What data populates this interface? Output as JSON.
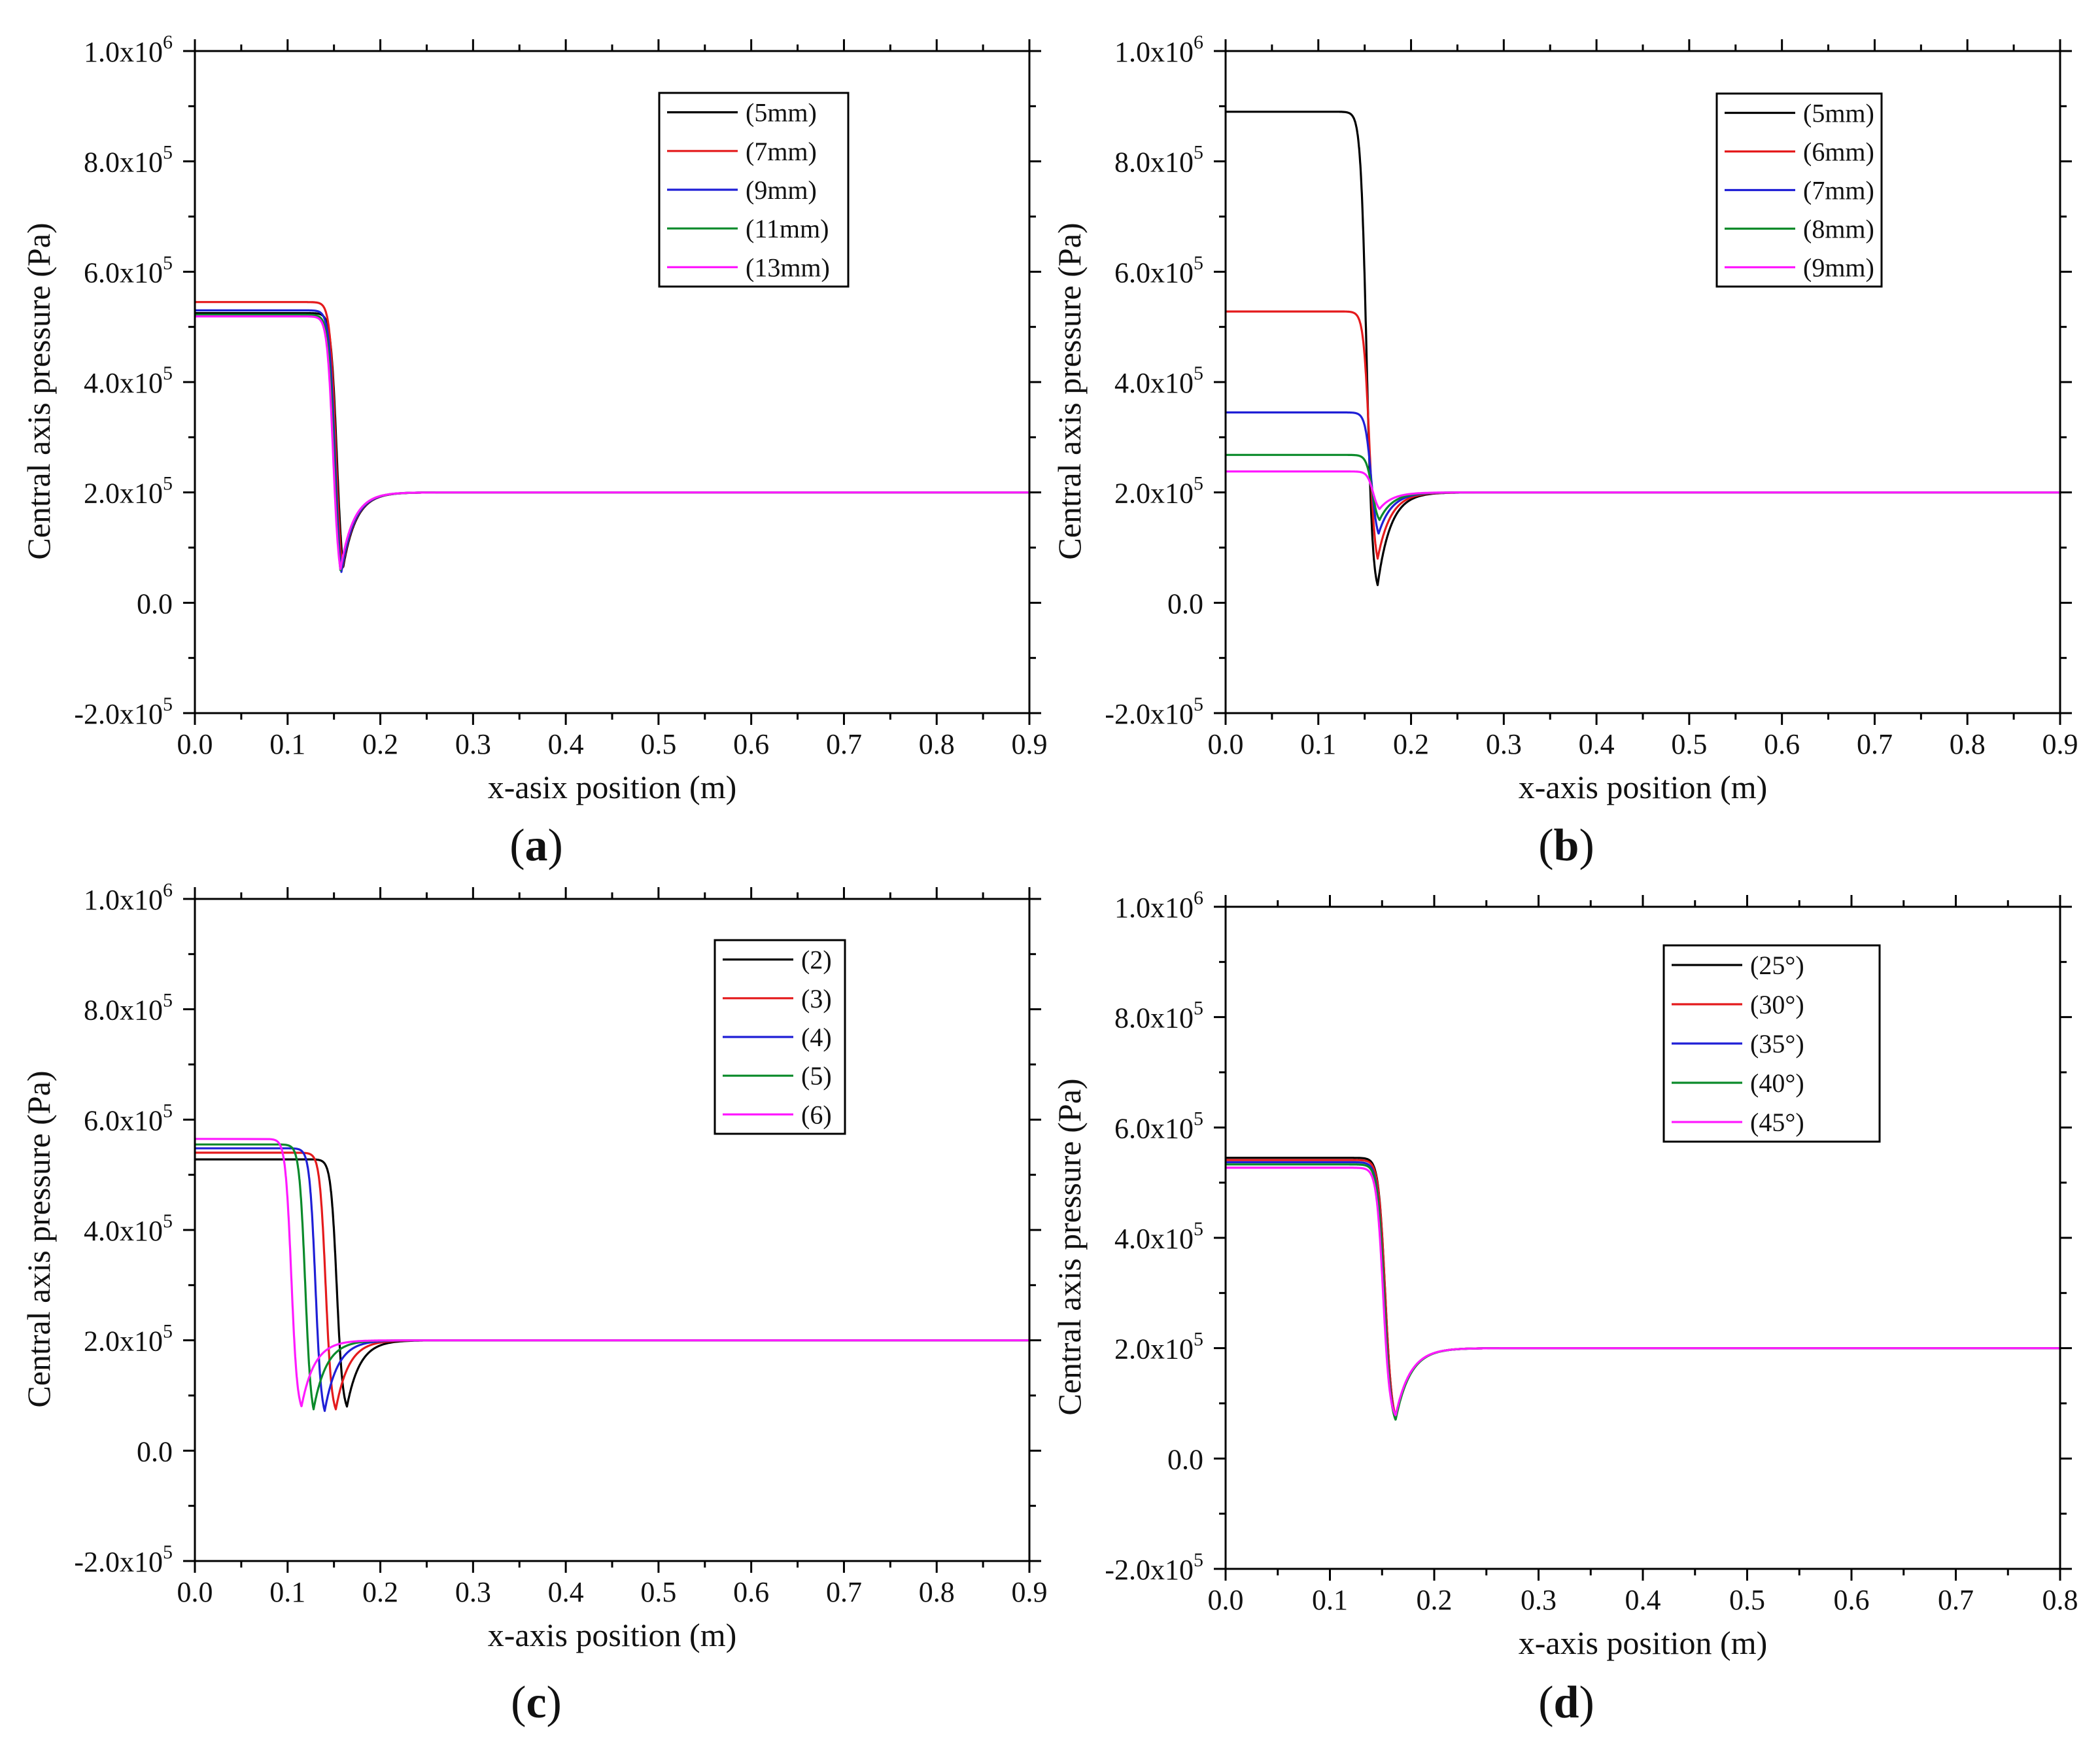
{
  "colors": {
    "black": "#000000",
    "red": "#e41a1c",
    "blue": "#1f1fd6",
    "green": "#0a8a2a",
    "magenta": "#ff1aff"
  },
  "chart_data": [
    {
      "panel": "a",
      "type": "line",
      "panel_label": "a",
      "xlabel": "x-asix position (m)",
      "ylabel": "Central axis pressure (Pa)",
      "xlim": [
        0.0,
        0.9
      ],
      "ylim": [
        -200000,
        1000000
      ],
      "xticks": [
        0.0,
        0.1,
        0.2,
        0.3,
        0.4,
        0.5,
        0.6,
        0.7,
        0.8,
        0.9
      ],
      "xtick_labels": [
        "0.0",
        "0.1",
        "0.2",
        "0.3",
        "0.4",
        "0.5",
        "0.6",
        "0.7",
        "0.8",
        "0.9"
      ],
      "yticks": [
        -200000,
        0,
        200000,
        400000,
        600000,
        800000,
        1000000
      ],
      "ytick_labels": [
        [
          "-2.0x10",
          "5"
        ],
        [
          "0.0",
          ""
        ],
        [
          "2.0x10",
          "5"
        ],
        [
          "4.0x10",
          "5"
        ],
        [
          "6.0x10",
          "5"
        ],
        [
          "8.0x10",
          "5"
        ],
        [
          "1.0x10",
          "6"
        ]
      ],
      "legend_position": "top-right",
      "series": [
        {
          "name": "(5mm)",
          "color": "black",
          "p0": 525000,
          "x_drop": 0.153,
          "p_min": 65000,
          "x_min": 0.16
        },
        {
          "name": "(7mm)",
          "color": "red",
          "p0": 545000,
          "x_drop": 0.152,
          "p_min": 62000,
          "x_min": 0.159
        },
        {
          "name": "(9mm)",
          "color": "blue",
          "p0": 530000,
          "x_drop": 0.151,
          "p_min": 56000,
          "x_min": 0.158
        },
        {
          "name": "(11mm)",
          "color": "green",
          "p0": 522000,
          "x_drop": 0.15,
          "p_min": 58000,
          "x_min": 0.157
        },
        {
          "name": "(13mm)",
          "color": "magenta",
          "p0": 519000,
          "x_drop": 0.149,
          "p_min": 60000,
          "x_min": 0.157
        }
      ],
      "p_end": 200000
    },
    {
      "panel": "b",
      "type": "line",
      "panel_label": "b",
      "xlabel": "x-axis position (m)",
      "ylabel": "Central axis pressure (Pa)",
      "xlim": [
        0.0,
        0.9
      ],
      "ylim": [
        -200000,
        1000000
      ],
      "xticks": [
        0.0,
        0.1,
        0.2,
        0.3,
        0.4,
        0.5,
        0.6,
        0.7,
        0.8,
        0.9
      ],
      "xtick_labels": [
        "0.0",
        "0.1",
        "0.2",
        "0.3",
        "0.4",
        "0.5",
        "0.6",
        "0.7",
        "0.8",
        "0.9"
      ],
      "yticks": [
        -200000,
        0,
        200000,
        400000,
        600000,
        800000,
        1000000
      ],
      "ytick_labels": [
        [
          "-2.0x10",
          "5"
        ],
        [
          "0.0",
          ""
        ],
        [
          "2.0x10",
          "5"
        ],
        [
          "4.0x10",
          "5"
        ],
        [
          "6.0x10",
          "5"
        ],
        [
          "8.0x10",
          "5"
        ],
        [
          "1.0x10",
          "6"
        ]
      ],
      "legend_position": "top-right",
      "series": [
        {
          "name": "(5mm)",
          "color": "black",
          "p0": 890000,
          "x_drop": 0.152,
          "p_min": 32000,
          "x_min": 0.164
        },
        {
          "name": "(6mm)",
          "color": "red",
          "p0": 528000,
          "x_drop": 0.155,
          "p_min": 80000,
          "x_min": 0.164
        },
        {
          "name": "(7mm)",
          "color": "blue",
          "p0": 345000,
          "x_drop": 0.157,
          "p_min": 125000,
          "x_min": 0.165
        },
        {
          "name": "(8mm)",
          "color": "green",
          "p0": 268000,
          "x_drop": 0.158,
          "p_min": 150000,
          "x_min": 0.166
        },
        {
          "name": "(9mm)",
          "color": "magenta",
          "p0": 238000,
          "x_drop": 0.159,
          "p_min": 170000,
          "x_min": 0.166
        }
      ],
      "p_end": 200000
    },
    {
      "panel": "c",
      "type": "line",
      "panel_label": "c",
      "xlabel": "x-axis position (m)",
      "ylabel": "Central axis pressure (Pa)",
      "xlim": [
        0.0,
        0.9
      ],
      "ylim": [
        -200000,
        1000000
      ],
      "xticks": [
        0.0,
        0.1,
        0.2,
        0.3,
        0.4,
        0.5,
        0.6,
        0.7,
        0.8,
        0.9
      ],
      "xtick_labels": [
        "0.0",
        "0.1",
        "0.2",
        "0.3",
        "0.4",
        "0.5",
        "0.6",
        "0.7",
        "0.8",
        "0.9"
      ],
      "yticks": [
        -200000,
        0,
        200000,
        400000,
        600000,
        800000,
        1000000
      ],
      "ytick_labels": [
        [
          "-2.0x10",
          "5"
        ],
        [
          "0.0",
          ""
        ],
        [
          "2.0x10",
          "5"
        ],
        [
          "4.0x10",
          "5"
        ],
        [
          "6.0x10",
          "5"
        ],
        [
          "8.0x10",
          "5"
        ],
        [
          "1.0x10",
          "6"
        ]
      ],
      "legend_position": "top-right",
      "series": [
        {
          "name": "(2)",
          "color": "black",
          "p0": 528000,
          "x_drop": 0.153,
          "p_min": 80000,
          "x_min": 0.164
        },
        {
          "name": "(3)",
          "color": "red",
          "p0": 540000,
          "x_drop": 0.141,
          "p_min": 75000,
          "x_min": 0.152
        },
        {
          "name": "(4)",
          "color": "blue",
          "p0": 548000,
          "x_drop": 0.13,
          "p_min": 72000,
          "x_min": 0.14
        },
        {
          "name": "(5)",
          "color": "green",
          "p0": 555000,
          "x_drop": 0.119,
          "p_min": 75000,
          "x_min": 0.128
        },
        {
          "name": "(6)",
          "color": "magenta",
          "p0": 565000,
          "x_drop": 0.104,
          "p_min": 80000,
          "x_min": 0.115
        }
      ],
      "p_end": 200000
    },
    {
      "panel": "d",
      "type": "line",
      "panel_label": "d",
      "xlabel": "x-axis position (m)",
      "ylabel": "Central axis pressure (Pa)",
      "xlim": [
        0.0,
        0.8
      ],
      "ylim": [
        -200000,
        1000000
      ],
      "xticks": [
        0.0,
        0.1,
        0.2,
        0.3,
        0.4,
        0.5,
        0.6,
        0.7,
        0.8
      ],
      "xtick_labels": [
        "0.0",
        "0.1",
        "0.2",
        "0.3",
        "0.4",
        "0.5",
        "0.6",
        "0.7",
        "0.8"
      ],
      "yticks": [
        -200000,
        0,
        200000,
        400000,
        600000,
        800000,
        1000000
      ],
      "ytick_labels": [
        [
          "-2.0x10",
          "5"
        ],
        [
          "0.0",
          ""
        ],
        [
          "2.0x10",
          "5"
        ],
        [
          "4.0x10",
          "5"
        ],
        [
          "6.0x10",
          "5"
        ],
        [
          "8.0x10",
          "5"
        ],
        [
          "1.0x10",
          "6"
        ]
      ],
      "legend_position": "top-right",
      "series": [
        {
          "name": "(25°)",
          "color": "black",
          "p0": 545000,
          "x_drop": 0.153,
          "p_min": 75000,
          "x_min": 0.163
        },
        {
          "name": "(30°)",
          "color": "red",
          "p0": 541000,
          "x_drop": 0.153,
          "p_min": 76000,
          "x_min": 0.163
        },
        {
          "name": "(35°)",
          "color": "blue",
          "p0": 537000,
          "x_drop": 0.152,
          "p_min": 74000,
          "x_min": 0.163
        },
        {
          "name": "(40°)",
          "color": "green",
          "p0": 533000,
          "x_drop": 0.152,
          "p_min": 70000,
          "x_min": 0.163
        },
        {
          "name": "(45°)",
          "color": "magenta",
          "p0": 527000,
          "x_drop": 0.151,
          "p_min": 78000,
          "x_min": 0.163
        }
      ],
      "p_end": 200000
    }
  ]
}
